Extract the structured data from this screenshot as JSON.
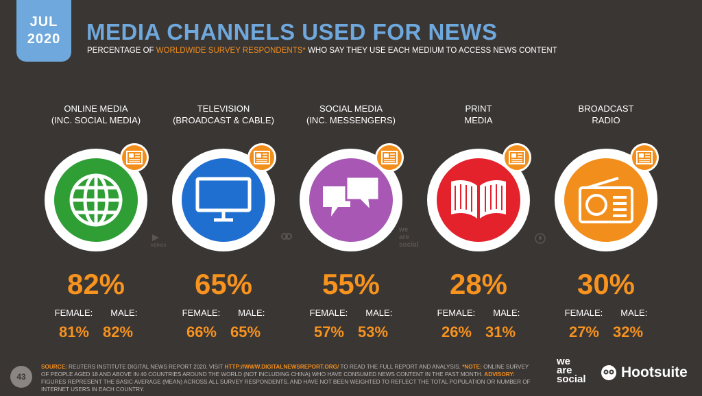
{
  "badge": {
    "month": "JUL",
    "year": "2020"
  },
  "header": {
    "title": "MEDIA CHANNELS USED FOR NEWS",
    "subtitle_pre": "PERCENTAGE OF ",
    "subtitle_hl": "WORLDWIDE SURVEY RESPONDENTS*",
    "subtitle_post": " WHO SAY THEY USE EACH MEDIUM TO ACCESS NEWS CONTENT"
  },
  "labels": {
    "female": "FEMALE:",
    "male": "MALE:"
  },
  "chart_data": {
    "type": "table",
    "categories": [
      "ONLINE MEDIA (INC. SOCIAL MEDIA)",
      "TELEVISION (BROADCAST & CABLE)",
      "SOCIAL MEDIA (INC. MESSENGERS)",
      "PRINT MEDIA",
      "BROADCAST RADIO"
    ],
    "series": [
      {
        "name": "Total",
        "values": [
          82,
          65,
          55,
          28,
          30
        ]
      },
      {
        "name": "FEMALE:",
        "values": [
          81,
          66,
          57,
          26,
          27
        ]
      },
      {
        "name": "MALE:",
        "values": [
          82,
          65,
          53,
          31,
          32
        ]
      }
    ]
  },
  "channels": [
    {
      "label1": "ONLINE MEDIA",
      "label2": "(INC. SOCIAL MEDIA)",
      "icon": "globe-icon",
      "color": "#2e9e35",
      "total": "82%",
      "female": "81%",
      "male": "82%"
    },
    {
      "label1": "TELEVISION",
      "label2": "(BROADCAST & CABLE)",
      "icon": "tv-icon",
      "color": "#1f6fd1",
      "total": "65%",
      "female": "66%",
      "male": "65%"
    },
    {
      "label1": "SOCIAL MEDIA",
      "label2": "(INC. MESSENGERS)",
      "icon": "chat-bubbles-icon",
      "color": "#a857b5",
      "total": "55%",
      "female": "57%",
      "male": "53%"
    },
    {
      "label1": "PRINT",
      "label2": "MEDIA",
      "icon": "book-icon",
      "color": "#e3222c",
      "total": "28%",
      "female": "26%",
      "male": "31%"
    },
    {
      "label1": "BROADCAST",
      "label2": "RADIO",
      "icon": "radio-icon",
      "color": "#f28e1c",
      "total": "30%",
      "female": "27%",
      "male": "32%"
    }
  ],
  "footer": {
    "source_label": "SOURCE:",
    "source_text": " REUTERS INSTITUTE DIGITAL NEWS REPORT 2020. VISIT ",
    "source_url": "HTTP://WWW.DIGITALNEWSREPORT.ORG/",
    "source_text2": " TO READ THE FULL REPORT AND ANALYSIS. ",
    "note_label": "*NOTE:",
    "note_text": " ONLINE SURVEY OF PEOPLE AGED 18 AND ABOVE IN 40 COUNTRIES AROUND THE WORLD (NOT INCLUDING CHINA) WHO HAVE CONSUMED NEWS CONTENT IN THE PAST MONTH. ",
    "advisory_label": "ADVISORY:",
    "advisory_text": " FIGURES REPRESENT THE BASIC AVERAGE (MEAN) ACROSS ALL SURVEY RESPONDENTS, AND HAVE NOT BEEN WEIGHTED TO REFLECT THE TOTAL POPULATION OR NUMBER OF INTERNET USERS IN EACH COUNTRY."
  },
  "page_number": "43",
  "brand1": {
    "l1": "we",
    "l2": "are",
    "l3": "social"
  },
  "brand2": "Hootsuite",
  "watermark": {
    "kepios": "KEPIOS",
    "was1": "we",
    "was2": "are",
    "was3": "social"
  }
}
